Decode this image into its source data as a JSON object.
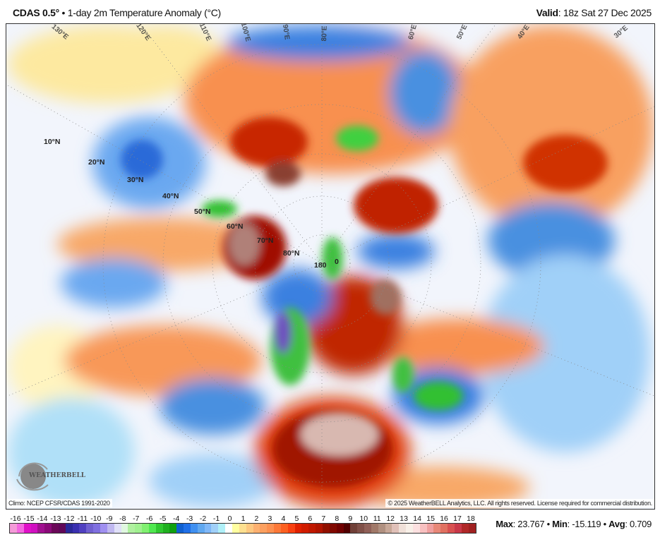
{
  "header": {
    "model": "CDAS 0.5",
    "deg": "°",
    "sep": " • ",
    "product": "1-day 2m Temperature Anomaly (°C)",
    "valid_label": "Valid",
    "valid_value": ": 18z Sat 27 Dec 2025"
  },
  "map": {
    "lat_labels": [
      "10°N",
      "20°N",
      "30°N",
      "40°N",
      "50°N",
      "60°N",
      "70°N",
      "80°N"
    ],
    "meridian_labels": [
      "180",
      "0"
    ],
    "lon_labels": [
      "130°E",
      "120°E",
      "110°E",
      "100°E",
      "90°E",
      "80°E",
      "60°E",
      "50°E",
      "40°E",
      "30°E"
    ],
    "climo": "Climo: NCEP CFSR/CDAS 1991-2020",
    "copyright": "© 2025 WeatherBELL Analytics, LLC. All rights reserved. License required for commercial distribution.",
    "logo_text": "WEATHERBELL"
  },
  "colorbar": {
    "ticks": [
      "-16",
      "-15",
      "-14",
      "-13",
      "-12",
      "-11",
      "-10",
      "-9",
      "-8",
      "-7",
      "-6",
      "-5",
      "-4",
      "-3",
      "-2",
      "-1",
      "0",
      "1",
      "2",
      "3",
      "4",
      "5",
      "6",
      "7",
      "8",
      "9",
      "10",
      "11",
      "12",
      "13",
      "14",
      "15",
      "16",
      "17",
      "18"
    ],
    "colors": [
      "#f49ad8",
      "#f466e0",
      "#e010c8",
      "#d010c0",
      "#a0108f",
      "#8a0a78",
      "#6a0858",
      "#600858",
      "#2a2898",
      "#3a30b0",
      "#5040c0",
      "#7060d0",
      "#8070e0",
      "#a090f0",
      "#c0b8f0",
      "#e0e0f8",
      "#e0f8e0",
      "#b0f0a0",
      "#a0f090",
      "#80f070",
      "#50e850",
      "#30c830",
      "#20b020",
      "#10a010",
      "#1060d0",
      "#2070e8",
      "#4090f0",
      "#60a8f0",
      "#80b8f8",
      "#a0d0f8",
      "#b0f0f8",
      "#ffffff",
      "#ffffa0",
      "#fde090",
      "#fdc880",
      "#fcb070",
      "#fca060",
      "#fc9050",
      "#fc7838",
      "#fc6020",
      "#f84010",
      "#e02000",
      "#d01c00",
      "#c01800",
      "#b01400",
      "#901000",
      "#800800",
      "#700000",
      "#500000",
      "#704038",
      "#805048",
      "#906058",
      "#a07868",
      "#b09080",
      "#c8a898",
      "#e0c0b8",
      "#f0e0d8",
      "#f8f0e8",
      "#fce0e0",
      "#f8c0c0",
      "#f0a0a0",
      "#e88878",
      "#e07060",
      "#d85050",
      "#c83848",
      "#b02828",
      "#a02020"
    ]
  },
  "stats": {
    "max_label": "Max",
    "max_value": ": 23.767",
    "min_label": "Min",
    "min_value": ": -15.119",
    "avg_label": "Avg",
    "avg_value": ": 0.709",
    "sep": " • "
  }
}
